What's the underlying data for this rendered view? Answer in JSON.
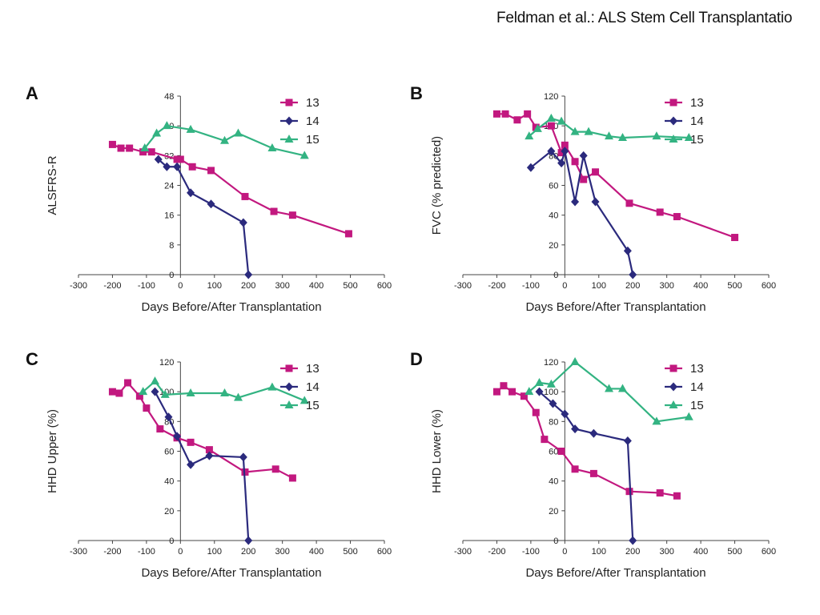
{
  "header": {
    "text": "Feldman et al.: ALS Stem Cell Transplantatio"
  },
  "colors": {
    "13": "#c2187f",
    "14": "#2b2a7d",
    "15": "#33b382",
    "axis": "#444444"
  },
  "chart_data": [
    {
      "panel": "A",
      "type": "line",
      "ylabel": "ALSFRS-R",
      "xlabel": "Days Before/After Transplantation",
      "xlim": [
        -300,
        600
      ],
      "ylim": [
        0,
        48
      ],
      "xticks": [
        -300,
        -200,
        -100,
        0,
        100,
        200,
        300,
        400,
        500,
        600
      ],
      "yticks": [
        0,
        8,
        16,
        24,
        32,
        40,
        48
      ],
      "legend": "top-right",
      "series": [
        {
          "name": "13",
          "marker": "square",
          "color": "#c2187f",
          "x": [
            -200,
            -175,
            -150,
            -110,
            -85,
            -10,
            0,
            35,
            90,
            190,
            275,
            330,
            495
          ],
          "y": [
            35,
            34,
            34,
            33,
            33,
            31,
            31,
            29,
            28,
            21,
            17,
            16,
            11
          ]
        },
        {
          "name": "14",
          "marker": "diamond",
          "color": "#2b2a7d",
          "x": [
            -65,
            -40,
            -10,
            30,
            90,
            185,
            200
          ],
          "y": [
            31,
            29,
            29,
            22,
            19,
            14,
            0
          ]
        },
        {
          "name": "15",
          "marker": "triangle",
          "color": "#33b382",
          "x": [
            -105,
            -70,
            -40,
            30,
            130,
            170,
            270,
            365
          ],
          "y": [
            34,
            38,
            40,
            39,
            36,
            38,
            34,
            32
          ]
        }
      ]
    },
    {
      "panel": "B",
      "type": "line",
      "ylabel": "FVC (% predicted)",
      "xlabel": "Days Before/After Transplantation",
      "xlim": [
        -300,
        600
      ],
      "ylim": [
        0,
        120
      ],
      "xticks": [
        -300,
        -200,
        -100,
        0,
        100,
        200,
        300,
        400,
        500,
        600
      ],
      "yticks": [
        0,
        20,
        40,
        60,
        80,
        100,
        120
      ],
      "legend": "top-right",
      "series": [
        {
          "name": "13",
          "marker": "square",
          "color": "#c2187f",
          "x": [
            -200,
            -175,
            -140,
            -110,
            -85,
            -40,
            -10,
            0,
            30,
            55,
            90,
            190,
            280,
            330,
            500
          ],
          "y": [
            108,
            108,
            104,
            108,
            99,
            100,
            82,
            87,
            76,
            64,
            69,
            48,
            42,
            39,
            25
          ]
        },
        {
          "name": "14",
          "marker": "diamond",
          "color": "#2b2a7d",
          "x": [
            -100,
            -40,
            -10,
            0,
            30,
            55,
            90,
            185,
            200
          ],
          "y": [
            72,
            83,
            75,
            83,
            49,
            80,
            49,
            16,
            0
          ]
        },
        {
          "name": "15",
          "marker": "triangle",
          "color": "#33b382",
          "x": [
            -105,
            -80,
            -40,
            -10,
            30,
            70,
            130,
            170,
            270,
            365
          ],
          "y": [
            93,
            98,
            105,
            103,
            96,
            96,
            93,
            92,
            93,
            92
          ]
        }
      ]
    },
    {
      "panel": "C",
      "type": "line",
      "ylabel": "HHD Upper (%)",
      "xlabel": "Days Before/After Transplantation",
      "xlim": [
        -300,
        600
      ],
      "ylim": [
        0,
        120
      ],
      "xticks": [
        -300,
        -200,
        -100,
        0,
        100,
        200,
        300,
        400,
        500,
        600
      ],
      "yticks": [
        0,
        20,
        40,
        60,
        80,
        100,
        120
      ],
      "legend": "top-right",
      "series": [
        {
          "name": "13",
          "marker": "square",
          "color": "#c2187f",
          "x": [
            -200,
            -180,
            -155,
            -120,
            -100,
            -60,
            -10,
            30,
            85,
            190,
            280,
            330
          ],
          "y": [
            100,
            99,
            106,
            97,
            89,
            75,
            69,
            66,
            61,
            46,
            48,
            42
          ]
        },
        {
          "name": "14",
          "marker": "diamond",
          "color": "#2b2a7d",
          "x": [
            -75,
            -35,
            -10,
            30,
            85,
            185,
            200
          ],
          "y": [
            100,
            83,
            70,
            51,
            57,
            56,
            0
          ]
        },
        {
          "name": "15",
          "marker": "triangle",
          "color": "#33b382",
          "x": [
            -110,
            -75,
            -45,
            30,
            130,
            170,
            270,
            365
          ],
          "y": [
            100,
            107,
            98,
            99,
            99,
            96,
            103,
            94
          ]
        }
      ]
    },
    {
      "panel": "D",
      "type": "line",
      "ylabel": "HHD Lower (%)",
      "xlabel": "Days Before/After Transplantation",
      "xlim": [
        -300,
        600
      ],
      "ylim": [
        0,
        120
      ],
      "xticks": [
        -300,
        -200,
        -100,
        0,
        100,
        200,
        300,
        400,
        500,
        600
      ],
      "yticks": [
        0,
        20,
        40,
        60,
        80,
        100,
        120
      ],
      "legend": "top-right",
      "series": [
        {
          "name": "13",
          "marker": "square",
          "color": "#c2187f",
          "x": [
            -200,
            -180,
            -155,
            -120,
            -85,
            -60,
            -10,
            30,
            85,
            190,
            280,
            330
          ],
          "y": [
            100,
            104,
            100,
            97,
            86,
            68,
            60,
            48,
            45,
            33,
            32,
            30
          ]
        },
        {
          "name": "14",
          "marker": "diamond",
          "color": "#2b2a7d",
          "x": [
            -75,
            -35,
            0,
            30,
            85,
            185,
            200
          ],
          "y": [
            100,
            92,
            85,
            75,
            72,
            67,
            0
          ]
        },
        {
          "name": "15",
          "marker": "triangle",
          "color": "#33b382",
          "x": [
            -105,
            -75,
            -40,
            30,
            130,
            170,
            270,
            365
          ],
          "y": [
            100,
            106,
            105,
            120,
            102,
            102,
            80,
            83
          ]
        }
      ]
    }
  ]
}
